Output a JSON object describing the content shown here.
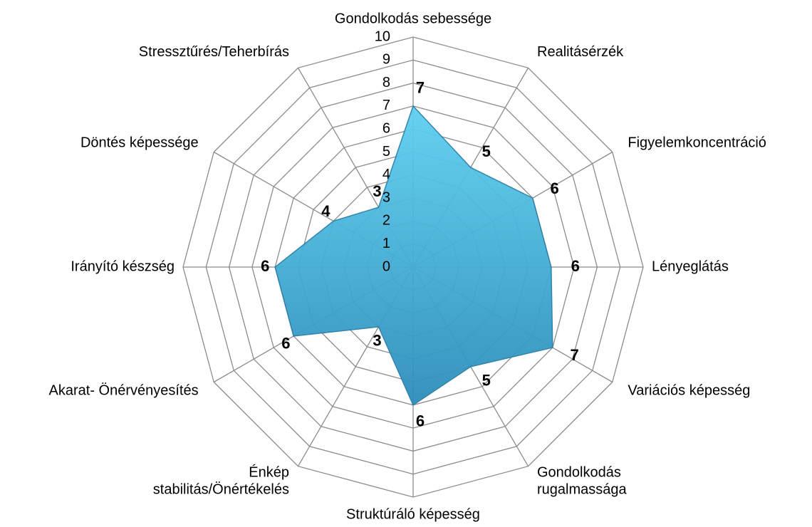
{
  "chart_data": {
    "type": "radar",
    "categories": [
      "Gondolkodás sebessége",
      "Realitásérzék",
      "Figyelemkoncentráció",
      "Lényeglátás",
      "Variációs képesség",
      "Gondolkodás\nrugalmassága",
      "Struktúráló képesség",
      "Énkép\nstabilitás/Önértékelés",
      "Akarat- Önérvényesítés",
      "Irányító készség",
      "Döntés képessége",
      "Stressztűrés/Teherbírás"
    ],
    "values": [
      7,
      5,
      6,
      6,
      7,
      5,
      6,
      3,
      6,
      6,
      4,
      3
    ],
    "color": "#3bb0dc",
    "ylim": [
      0,
      10
    ],
    "yticks": [
      0,
      1,
      2,
      3,
      4,
      5,
      6,
      7,
      8,
      9,
      10
    ],
    "grid": true
  }
}
